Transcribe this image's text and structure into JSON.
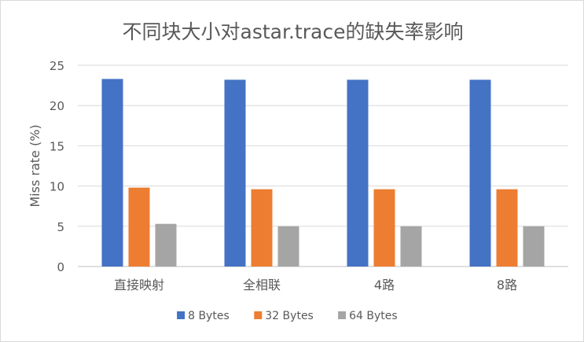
{
  "chart_data": {
    "type": "bar",
    "title": "不同块大小对astar.trace的缺失率影响",
    "xlabel": "",
    "ylabel": "Miss rate (%)",
    "ylim": [
      0,
      25
    ],
    "yticks": [
      0,
      5,
      10,
      15,
      20,
      25
    ],
    "grid": true,
    "legend_position": "bottom",
    "categories": [
      "直接映射",
      "全相联",
      "4路",
      "8路"
    ],
    "series": [
      {
        "name": "8 Bytes",
        "color": "#4472c4",
        "values": [
          23.3,
          23.2,
          23.2,
          23.2
        ]
      },
      {
        "name": "32 Bytes",
        "color": "#ed7d31",
        "values": [
          9.8,
          9.6,
          9.6,
          9.6
        ]
      },
      {
        "name": "64 Bytes",
        "color": "#a5a5a5",
        "values": [
          5.3,
          5.0,
          5.0,
          5.0
        ]
      }
    ]
  }
}
